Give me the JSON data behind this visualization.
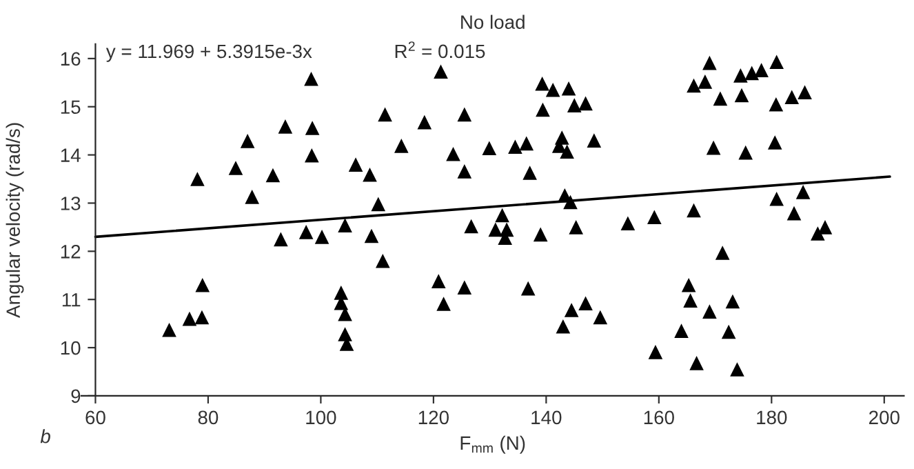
{
  "chart_data": {
    "type": "scatter",
    "title": "No load",
    "xlabel": "F$_{mm}$ (N)",
    "ylabel": "Angular velocity (rad/s)",
    "annotations": [
      "y = 11.969 + 5.3915e-3x",
      "R$^{2}$ = 0.015",
      "b"
    ],
    "xlim": [
      57.5,
      203.5
    ],
    "ylim": [
      9,
      16.3
    ],
    "xticks": [
      60,
      80,
      100,
      120,
      140,
      160,
      180,
      200
    ],
    "yticks": [
      9,
      10,
      11,
      12,
      13,
      14,
      15,
      16
    ],
    "grid": false,
    "legend": false,
    "marker": "triangle",
    "series": [
      {
        "color": "#000000",
        "x": [
          73.1,
          76.7,
          78.9,
          79.0,
          78.1,
          84.9,
          87.0,
          87.8,
          91.5,
          93.7,
          92.9,
          97.4,
          98.3,
          98.5,
          98.4,
          100.2,
          104.3,
          103.6,
          103.6,
          104.3,
          104.3,
          104.6,
          106.2,
          108.7,
          110.2,
          109.0,
          111.0,
          111.4,
          114.3,
          118.4,
          121.3,
          120.9,
          121.8,
          125.5,
          123.5,
          125.5,
          126.7,
          125.5,
          129.9,
          132.2,
          131.0,
          133.0,
          132.7,
          134.5,
          136.5,
          137.1,
          136.8,
          139.0,
          139.3,
          141.2,
          144.0,
          139.4,
          145.0,
          147.0,
          142.8,
          142.3,
          143.7,
          148.5,
          143.3,
          144.3,
          145.3,
          144.5,
          143.0,
          147.0,
          149.6,
          154.5,
          159.2,
          159.4,
          166.2,
          165.3,
          165.6,
          164.0,
          166.7,
          169.0,
          171.3,
          173.1,
          172.4,
          173.9,
          169.0,
          166.2,
          168.2,
          170.9,
          174.5,
          176.5,
          178.2,
          180.9,
          174.7,
          180.8,
          183.6,
          185.9,
          169.7,
          175.4,
          180.6,
          180.9,
          185.6,
          184.0,
          189.5,
          188.2
        ],
        "values": [
          10.37,
          10.6,
          10.63,
          11.3,
          13.5,
          13.73,
          14.29,
          13.13,
          13.58,
          14.59,
          12.25,
          12.4,
          15.58,
          14.56,
          13.99,
          12.3,
          12.54,
          11.14,
          10.93,
          10.7,
          10.28,
          10.08,
          13.8,
          13.59,
          12.98,
          12.32,
          11.8,
          14.84,
          14.19,
          14.68,
          15.73,
          11.38,
          10.91,
          14.84,
          14.02,
          13.66,
          12.52,
          11.25,
          14.14,
          12.75,
          12.45,
          12.45,
          12.28,
          14.17,
          14.24,
          13.63,
          11.23,
          12.35,
          15.48,
          15.35,
          15.38,
          14.94,
          15.03,
          15.07,
          14.36,
          14.19,
          14.07,
          14.3,
          13.16,
          13.02,
          12.5,
          10.78,
          10.44,
          10.92,
          10.63,
          12.58,
          12.71,
          9.91,
          12.85,
          11.3,
          10.98,
          10.35,
          9.68,
          10.75,
          11.97,
          10.96,
          10.33,
          9.55,
          15.91,
          15.44,
          15.52,
          15.17,
          15.65,
          15.7,
          15.76,
          15.93,
          15.24,
          15.05,
          15.2,
          15.3,
          14.15,
          14.05,
          14.26,
          13.09,
          13.23,
          12.79,
          12.5,
          12.37
        ]
      },
      {
        "type": "line",
        "color": "#000000",
        "marker": "none",
        "x": [
          60,
          201
        ],
        "values": [
          12.3,
          13.55
        ]
      }
    ]
  }
}
